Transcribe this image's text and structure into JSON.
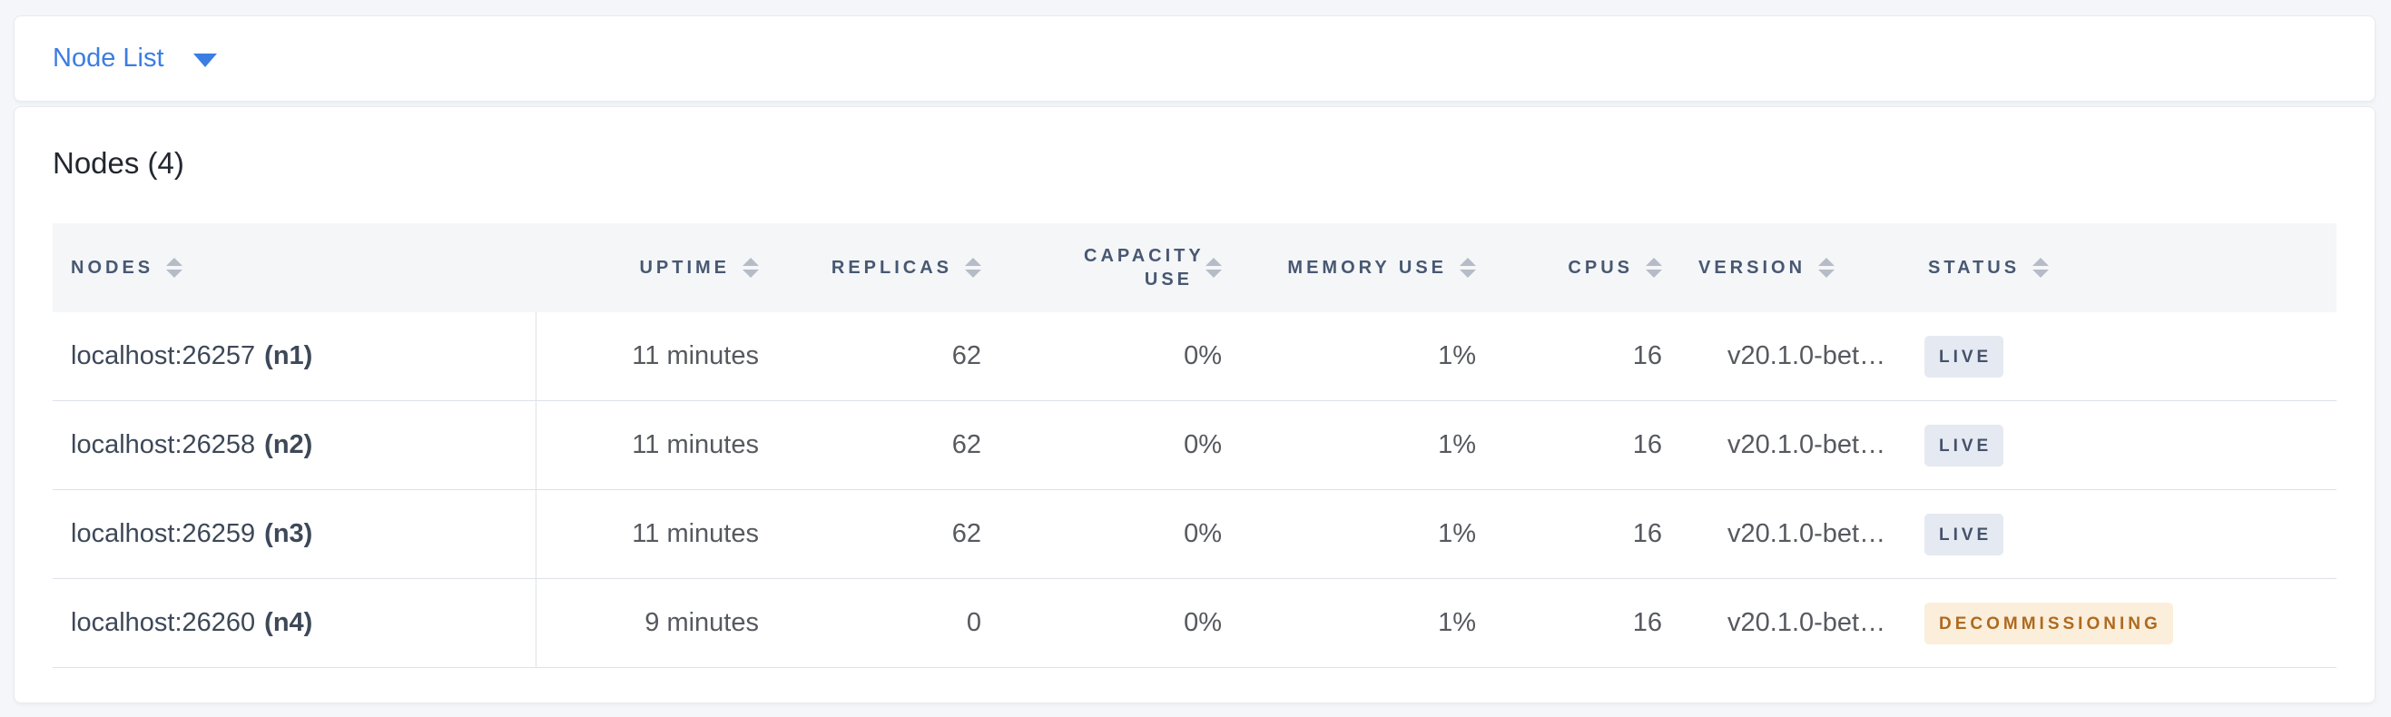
{
  "toolbar": {
    "view_selector_label": "Node List"
  },
  "main": {
    "title": "Nodes (4)",
    "table": {
      "columns": [
        {
          "field": "nodes",
          "label": "NODES",
          "align": "left"
        },
        {
          "field": "uptime",
          "label": "UPTIME",
          "align": "right"
        },
        {
          "field": "replicas",
          "label": "REPLICAS",
          "align": "right"
        },
        {
          "field": "capacity-use",
          "label": "CAPACITY USE",
          "align": "right"
        },
        {
          "field": "memory-use",
          "label": "MEMORY USE",
          "align": "right"
        },
        {
          "field": "cpus",
          "label": "CPUS",
          "align": "right"
        },
        {
          "field": "version",
          "label": "VERSION",
          "align": "left"
        },
        {
          "field": "status",
          "label": "STATUS",
          "align": "left"
        }
      ],
      "rows": [
        {
          "node_address": "localhost:26257",
          "node_id": "(n1)",
          "uptime": "11 minutes",
          "replicas": "62",
          "capacity_use": "0%",
          "memory_use": "1%",
          "cpus": "16",
          "version": "v20.1.0-bet…",
          "status": "LIVE",
          "status_type": "live"
        },
        {
          "node_address": "localhost:26258",
          "node_id": "(n2)",
          "uptime": "11 minutes",
          "replicas": "62",
          "capacity_use": "0%",
          "memory_use": "1%",
          "cpus": "16",
          "version": "v20.1.0-bet…",
          "status": "LIVE",
          "status_type": "live"
        },
        {
          "node_address": "localhost:26259",
          "node_id": "(n3)",
          "uptime": "11 minutes",
          "replicas": "62",
          "capacity_use": "0%",
          "memory_use": "1%",
          "cpus": "16",
          "version": "v20.1.0-bet…",
          "status": "LIVE",
          "status_type": "live"
        },
        {
          "node_address": "localhost:26260",
          "node_id": "(n4)",
          "uptime": "9 minutes",
          "replicas": "0",
          "capacity_use": "0%",
          "memory_use": "1%",
          "cpus": "16",
          "version": "v20.1.0-bet…",
          "status": "DECOMMISSIONING",
          "status_type": "decommissioning"
        }
      ]
    }
  },
  "colors": {
    "page_background": "#f4f6fa",
    "accent_blue": "#3b7de2",
    "header_text": "#475872",
    "cell_text": "#56595f",
    "node_text": "#3d4858",
    "status_live_bg": "#e5e9f1",
    "status_live_text": "#44526b",
    "status_decommissioning_bg": "#fbeedb",
    "status_decommissioning_text": "#ae6a20"
  }
}
